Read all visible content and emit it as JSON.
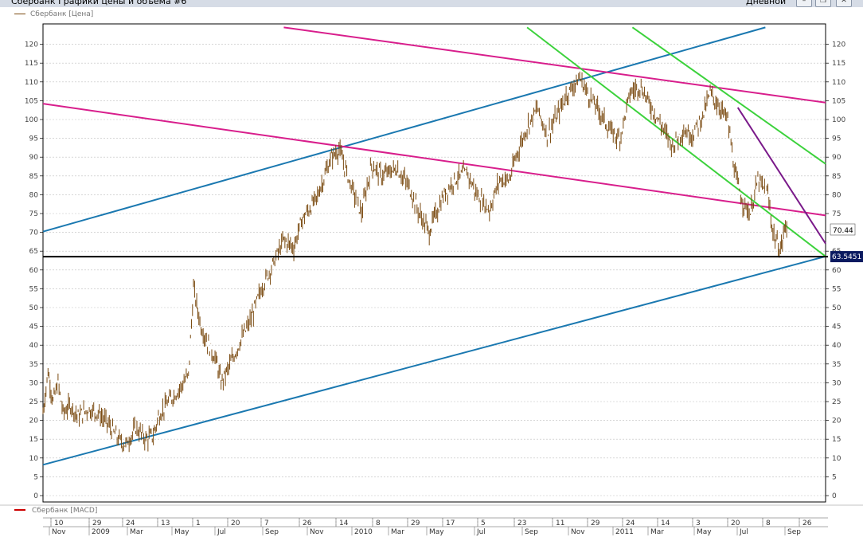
{
  "window": {
    "title": "Сбербанк Графики цены и объема #6",
    "period": "Дневной",
    "minimize_icon": "minimize-icon",
    "restore_icon": "restore-icon",
    "close_icon": "close-icon"
  },
  "colors": {
    "price": "#7a4a10",
    "blue_channel": "#1a78b0",
    "magenta_channel": "#d81e8c",
    "green_channel": "#3cd23c",
    "purple_trend": "#7a1a8a",
    "support_line": "#000000",
    "macd": "#cc0000",
    "grid": "#bfbfbf",
    "current_price_label_bg": "#0a1a60"
  },
  "chart_data": {
    "type": "candlestick",
    "series_name": "Сбербанк [Цена]",
    "ylim": [
      0,
      124
    ],
    "yticks": [
      0,
      5,
      10,
      15,
      20,
      25,
      30,
      35,
      40,
      45,
      50,
      55,
      60,
      65,
      70,
      75,
      80,
      85,
      90,
      95,
      100,
      105,
      110,
      115,
      120
    ],
    "last_price": "70.44",
    "support_level": "63.5451",
    "support_value": 63.5451,
    "x_top_labels": [
      "10",
      "29",
      "24",
      "13",
      "1",
      "20",
      "7",
      "26",
      "14",
      "8",
      "29",
      "17",
      "5",
      "23",
      "11",
      "29",
      "24",
      "14",
      "3",
      "20",
      "8",
      "26"
    ],
    "x_bottom_labels": [
      "Nov",
      "2009",
      "Mar",
      "May",
      "Jul",
      "Sep",
      "Nov",
      "2010",
      "Mar",
      "May",
      "Jul",
      "Sep",
      "Nov",
      "2011",
      "Mar",
      "May",
      "Jul",
      "Sep"
    ],
    "price_path": [
      [
        2008.84,
        22
      ],
      [
        2008.86,
        33
      ],
      [
        2008.88,
        25
      ],
      [
        2008.9,
        30
      ],
      [
        2008.92,
        22
      ],
      [
        2008.95,
        24
      ],
      [
        2008.98,
        21
      ],
      [
        2009.02,
        23
      ],
      [
        2009.06,
        22
      ],
      [
        2009.1,
        19
      ],
      [
        2009.14,
        15
      ],
      [
        2009.17,
        13.5
      ],
      [
        2009.21,
        18
      ],
      [
        2009.25,
        15
      ],
      [
        2009.28,
        16
      ],
      [
        2009.3,
        21
      ],
      [
        2009.34,
        25
      ],
      [
        2009.38,
        28
      ],
      [
        2009.42,
        32
      ],
      [
        2009.44,
        55
      ],
      [
        2009.47,
        45
      ],
      [
        2009.5,
        40
      ],
      [
        2009.53,
        36
      ],
      [
        2009.55,
        30
      ],
      [
        2009.58,
        34
      ],
      [
        2009.62,
        40
      ],
      [
        2009.67,
        47
      ],
      [
        2009.71,
        55
      ],
      [
        2009.76,
        62
      ],
      [
        2009.8,
        68
      ],
      [
        2009.84,
        66
      ],
      [
        2009.87,
        73
      ],
      [
        2009.93,
        79
      ],
      [
        2009.99,
        90
      ],
      [
        2010.02,
        92
      ],
      [
        2010.06,
        84
      ],
      [
        2010.11,
        75
      ],
      [
        2010.15,
        88
      ],
      [
        2010.19,
        85
      ],
      [
        2010.25,
        87
      ],
      [
        2010.3,
        82
      ],
      [
        2010.34,
        75
      ],
      [
        2010.38,
        70
      ],
      [
        2010.4,
        74
      ],
      [
        2010.44,
        80
      ],
      [
        2010.48,
        84
      ],
      [
        2010.53,
        86
      ],
      [
        2010.57,
        80
      ],
      [
        2010.62,
        76
      ],
      [
        2010.66,
        84
      ],
      [
        2010.7,
        84
      ],
      [
        2010.73,
        91
      ],
      [
        2010.77,
        98
      ],
      [
        2010.81,
        103
      ],
      [
        2010.85,
        96
      ],
      [
        2010.89,
        101
      ],
      [
        2010.93,
        107
      ],
      [
        2010.98,
        111
      ],
      [
        2011.02,
        106
      ],
      [
        2011.06,
        102
      ],
      [
        2011.1,
        97
      ],
      [
        2011.14,
        95
      ],
      [
        2011.18,
        107
      ],
      [
        2011.22,
        109
      ],
      [
        2011.26,
        104
      ],
      [
        2011.3,
        99
      ],
      [
        2011.35,
        93
      ],
      [
        2011.39,
        97
      ],
      [
        2011.43,
        96
      ],
      [
        2011.47,
        101
      ],
      [
        2011.5,
        107
      ],
      [
        2011.54,
        103
      ],
      [
        2011.57,
        100
      ],
      [
        2011.6,
        85
      ],
      [
        2011.63,
        78
      ],
      [
        2011.66,
        75
      ],
      [
        2011.69,
        84
      ],
      [
        2011.73,
        80
      ],
      [
        2011.75,
        70
      ],
      [
        2011.78,
        65
      ],
      [
        2011.8,
        72
      ],
      [
        2011.81,
        70.44
      ]
    ]
  },
  "bottom_panel": {
    "legend": "Сбербанк [MACD]"
  }
}
